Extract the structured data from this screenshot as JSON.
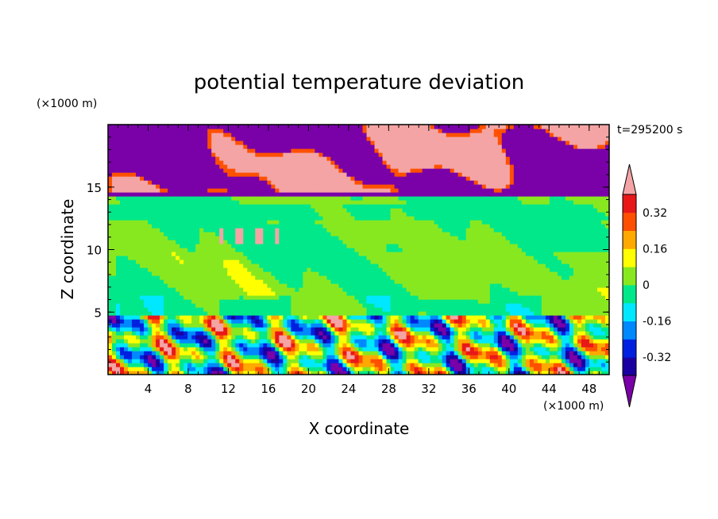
{
  "chart_data": {
    "type": "heatmap",
    "title": "potential temperature deviation",
    "xlabel": "X coordinate",
    "ylabel": "Z coordinate",
    "x_unit": "(×1000 m)",
    "y_unit": "(×1000 m)",
    "time_label": "t=295200 s",
    "xlim": [
      0,
      50
    ],
    "ylim": [
      0,
      20
    ],
    "x_ticks": [
      4,
      8,
      12,
      16,
      20,
      24,
      28,
      32,
      36,
      40,
      44,
      48
    ],
    "y_ticks": [
      5,
      10,
      15
    ],
    "colorbar": {
      "levels": [
        -0.4,
        -0.32,
        -0.24,
        -0.16,
        -0.08,
        0,
        0.08,
        0.16,
        0.24,
        0.32,
        0.4
      ],
      "colors": [
        "#7a00a8",
        "#1a00a0",
        "#0020e0",
        "#0088ff",
        "#00e8ff",
        "#00e88a",
        "#88e820",
        "#ffff00",
        "#ffa800",
        "#ff5000",
        "#e81818",
        "#f4a4a4"
      ],
      "tick_labels": [
        "0.32",
        "0.16",
        "0",
        "-0.16",
        "-0.32"
      ],
      "tick_values": [
        0.32,
        0.16,
        0,
        -0.16,
        -0.32
      ]
    },
    "layers": [
      {
        "z_range": [
          14.2,
          20
        ],
        "description": "alternating purple and pink (low and high deviation)"
      },
      {
        "z_range": [
          4.8,
          14.2
        ],
        "description": "mostly green to cyan near zero"
      },
      {
        "z_range": [
          0,
          4.8
        ],
        "description": "turbulent mixed values across full range"
      }
    ]
  }
}
